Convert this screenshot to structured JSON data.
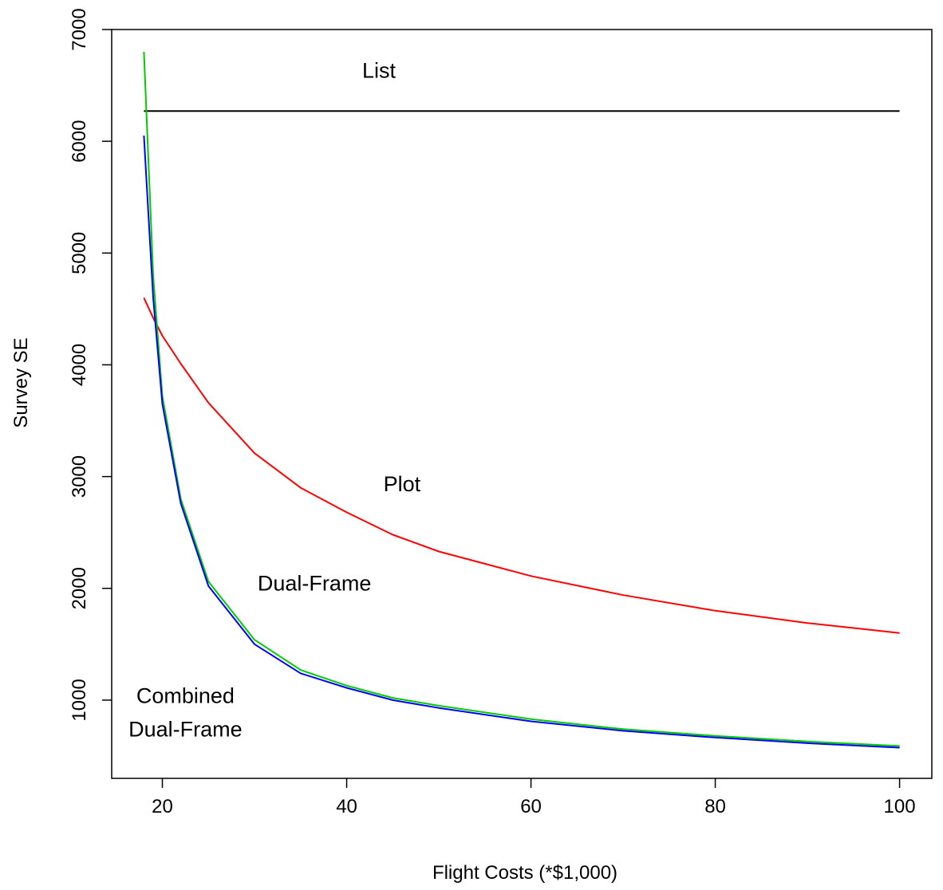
{
  "chart_data": {
    "type": "line",
    "title": "",
    "xlabel": "Flight Costs (*$1,000)",
    "ylabel": "Survey SE",
    "xlim": [
      14.5,
      103.5
    ],
    "ylim": [
      300,
      7000
    ],
    "xticks": [
      20,
      40,
      60,
      80,
      100
    ],
    "yticks": [
      1000,
      2000,
      3000,
      4000,
      5000,
      6000,
      7000
    ],
    "grid": false,
    "legend": "none",
    "x": [
      18,
      19,
      20,
      22,
      25,
      30,
      35,
      40,
      45,
      50,
      60,
      70,
      80,
      90,
      100
    ],
    "series": [
      {
        "key": "list",
        "color": "#000000",
        "values": [
          6270,
          6270,
          6270,
          6270,
          6270,
          6270,
          6270,
          6270,
          6270,
          6270,
          6270,
          6270,
          6270,
          6270,
          6270
        ]
      },
      {
        "key": "plot",
        "color": "#ff0000",
        "values": [
          4600,
          4420,
          4260,
          4010,
          3660,
          3210,
          2900,
          2680,
          2480,
          2330,
          2110,
          1940,
          1800,
          1690,
          1600
        ]
      },
      {
        "key": "dual_frame",
        "color": "#00cc00",
        "values": [
          6800,
          4800,
          3720,
          2800,
          2060,
          1540,
          1270,
          1130,
          1020,
          950,
          830,
          740,
          680,
          630,
          590
        ]
      },
      {
        "key": "combined_dual_frame",
        "color": "#0000ff",
        "values": [
          6050,
          4600,
          3650,
          2760,
          2020,
          1500,
          1240,
          1110,
          1000,
          930,
          810,
          725,
          665,
          615,
          575
        ]
      }
    ],
    "annotations": [
      {
        "key": "list",
        "lines": [
          "List"
        ],
        "x": 43.5,
        "y": 6570
      },
      {
        "key": "plot",
        "lines": [
          "Plot"
        ],
        "x": 46,
        "y": 2870
      },
      {
        "key": "dual_frame",
        "lines": [
          "Dual-Frame"
        ],
        "x": 36.5,
        "y": 1980
      },
      {
        "key": "combined_dual_frame",
        "lines": [
          "Combined",
          "Dual-Frame"
        ],
        "x": 22.5,
        "y": 975
      }
    ]
  }
}
